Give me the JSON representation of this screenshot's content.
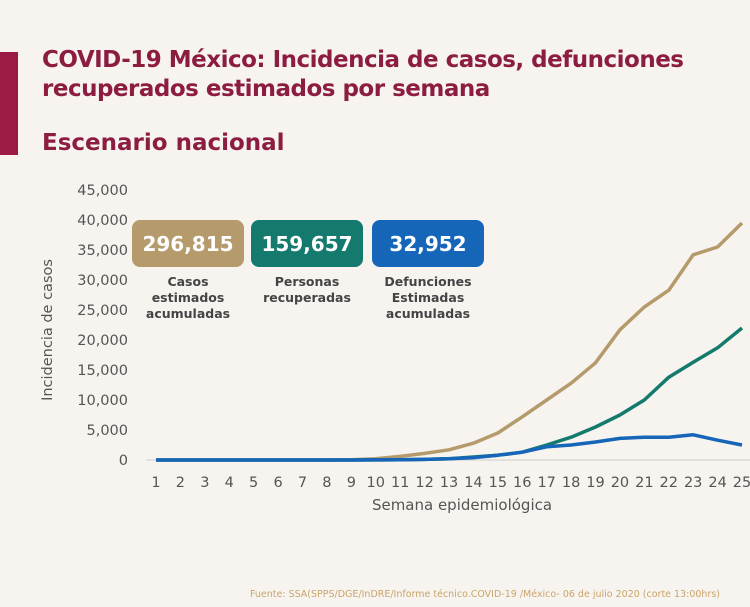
{
  "header": {
    "title_line1": "COVID-19 México: Incidencia de casos, defunciones",
    "title_line2": "recuperados estimados por semana",
    "subtitle": "Escenario nacional"
  },
  "kpis": [
    {
      "value": "296,815",
      "label": [
        "Casos",
        "estimados",
        "acumuladas"
      ],
      "color": "#b59a6b"
    },
    {
      "value": "159,657",
      "label": [
        "Personas",
        "recuperadas"
      ],
      "color": "#157a6e"
    },
    {
      "value": "32,952",
      "label": [
        "Defunciones",
        "Estimadas",
        "acumuladas"
      ],
      "color": "#1565b8"
    }
  ],
  "chart_data": {
    "type": "line",
    "xlabel": "Semana epidemiológica",
    "ylabel": "Incidencia de casos",
    "x": [
      1,
      2,
      3,
      4,
      5,
      6,
      7,
      8,
      9,
      10,
      11,
      12,
      13,
      14,
      15,
      16,
      17,
      18,
      19,
      20,
      21,
      22,
      23,
      24,
      25
    ],
    "ylim": [
      0,
      45000
    ],
    "yticks": [
      "0",
      "5,000",
      "10,000",
      "15,000",
      "20,000",
      "25,000",
      "30,000",
      "35,000",
      "40,000",
      "45,000"
    ],
    "grid": false,
    "series": [
      {
        "color": "#b59a6b",
        "values": [
          0,
          0,
          0,
          0,
          0,
          0,
          0,
          0,
          50,
          200,
          600,
          1100,
          1700,
          2800,
          4500,
          7200,
          10000,
          12800,
          16200,
          21700,
          25500,
          28300,
          34200,
          35500,
          39500
        ]
      },
      {
        "color": "#157a6e",
        "values": [
          0,
          0,
          0,
          0,
          0,
          0,
          0,
          0,
          0,
          20,
          50,
          100,
          200,
          500,
          800,
          1300,
          2500,
          3800,
          5500,
          7500,
          10000,
          13800,
          16300,
          18700,
          22000
        ]
      },
      {
        "color": "#1565b8",
        "values": [
          0,
          0,
          0,
          0,
          0,
          0,
          0,
          0,
          0,
          20,
          50,
          100,
          200,
          400,
          800,
          1300,
          2200,
          2500,
          3000,
          3600,
          3800,
          3800,
          4200,
          3300,
          2500
        ]
      }
    ]
  },
  "source": "Fuente: SSA(SPPS/DGE/InDRE/Informe técnico.COVID-19 /México- 06 de julio 2020 (corte 13:00hrs)"
}
